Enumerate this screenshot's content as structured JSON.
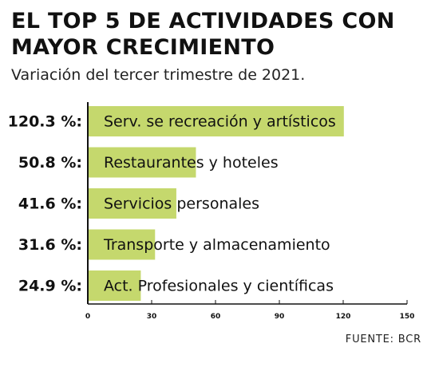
{
  "title": "EL TOP 5 DE ACTIVIDADES CON MAYOR CRECIMIENTO",
  "subtitle": "Variación del tercer trimestre de 2021.",
  "source": "FUENTE: BCR",
  "colors": {
    "bar": "#c5d86d",
    "axis": "#111111"
  },
  "chart_data": {
    "type": "bar",
    "orientation": "horizontal",
    "categories": [
      "Serv. se recreación y artísticos",
      "Restaurantes y hoteles",
      "Servicios personales",
      "Transporte y almacenamiento",
      "Act. Profesionales y científicas"
    ],
    "value_labels": [
      "120.3 %:",
      "50.8 %:",
      "41.6 %:",
      "31.6 %:",
      "24.9 %:"
    ],
    "values": [
      120.3,
      50.8,
      41.6,
      31.6,
      24.9
    ],
    "xlim": [
      0,
      150
    ],
    "xticks": [
      0,
      30,
      60,
      90,
      120,
      150
    ],
    "grid": false,
    "legend": "none"
  }
}
